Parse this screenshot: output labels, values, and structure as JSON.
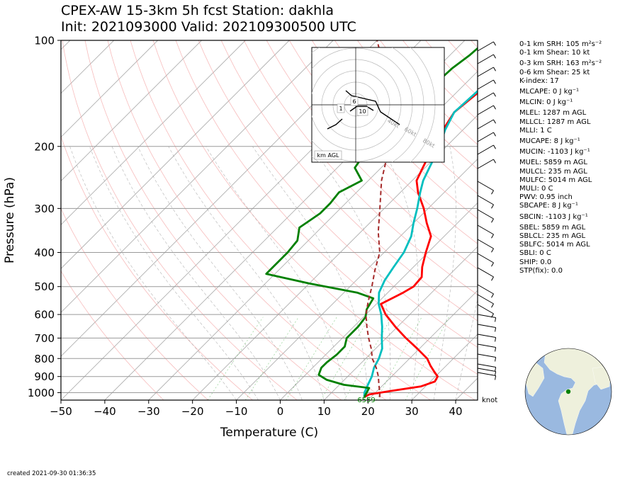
{
  "title": {
    "line1": "CPEX-AW 15-3km  5h fcst  Station: dakhla",
    "line2": "Init: 2021093000  Valid: 202109300500 UTC"
  },
  "created": "created 2021-09-30 01:36:35",
  "hodograph": {
    "label": "km AGL",
    "ring_labels": [
      "40kt",
      "60kt",
      "80kt"
    ],
    "height_markers": [
      "1",
      "6",
      "10"
    ]
  },
  "stats": [
    {
      "text": "0-1 km SRH: 105 m²s⁻²"
    },
    {
      "text": "0-1 km Shear: 10 kt"
    },
    {
      "text": "0-3 km SRH: 163 m²s⁻²",
      "gap": true
    },
    {
      "text": "0-6 km Shear: 25 kt"
    },
    {
      "text": "K-index: 17"
    },
    {
      "text": "MLCAPE: 0 J kg⁻¹",
      "gap": true
    },
    {
      "text": "MLCIN: 0 J kg⁻¹",
      "gap": true
    },
    {
      "text": "MLEL: 1287 m AGL",
      "gap": true
    },
    {
      "text": "MLLCL: 1287 m AGL"
    },
    {
      "text": "MLLI: 1 C"
    },
    {
      "text": "MUCAPE: 8 J kg⁻¹",
      "gap": true
    },
    {
      "text": "MUCIN: -1103 J kg⁻¹",
      "gap": true
    },
    {
      "text": "MUEL: 5859 m AGL",
      "gap": true
    },
    {
      "text": "MULCL: 235 m AGL"
    },
    {
      "text": "MULFC: 5014 m AGL"
    },
    {
      "text": "MULI: 0 C"
    },
    {
      "text": "PWV: 0.95 inch"
    },
    {
      "text": "SBCAPE: 8 J kg⁻¹"
    },
    {
      "text": "SBCIN: -1103 J kg⁻¹",
      "gap": true
    },
    {
      "text": "SBEL: 5859 m AGL",
      "gap": true
    },
    {
      "text": "SBLCL: 235 m AGL"
    },
    {
      "text": "SBLFC: 5014 m AGL"
    },
    {
      "text": "SBLI: 0 C"
    },
    {
      "text": "SHIP: 0.0"
    },
    {
      "text": "STP(fix): 0.0"
    }
  ],
  "wind_unit_label": "knot",
  "chart_data": {
    "type": "line",
    "subtype": "skew-T log-p",
    "xlabel": "Temperature (C)",
    "ylabel": "Pressure (hPa)",
    "xlim": [
      -50,
      45
    ],
    "ylim": [
      1050,
      100
    ],
    "y_scale": "log",
    "x_ticks": [
      -50,
      -40,
      -30,
      -20,
      -10,
      0,
      10,
      20,
      30,
      40
    ],
    "y_ticks": [
      100,
      200,
      300,
      400,
      500,
      600,
      700,
      800,
      900,
      1000
    ],
    "grid": true,
    "surface_annotation": "6559",
    "series": [
      {
        "color": "#ff0000",
        "points": [
          [
            1030,
            18.5
          ],
          [
            1012,
            19
          ],
          [
            990,
            23
          ],
          [
            960,
            29
          ],
          [
            930,
            31
          ],
          [
            900,
            30.5
          ],
          [
            870,
            28.5
          ],
          [
            840,
            26.5
          ],
          [
            800,
            24
          ],
          [
            750,
            19.5
          ],
          [
            700,
            14.5
          ],
          [
            650,
            9.5
          ],
          [
            600,
            4.5
          ],
          [
            560,
            1
          ],
          [
            520,
            3.5
          ],
          [
            500,
            4.5
          ],
          [
            470,
            4.2
          ],
          [
            440,
            2
          ],
          [
            400,
            -0.5
          ],
          [
            360,
            -3
          ],
          [
            330,
            -7
          ],
          [
            300,
            -11
          ],
          [
            270,
            -16
          ],
          [
            250,
            -19
          ],
          [
            230,
            -20.5
          ],
          [
            200,
            -23
          ],
          [
            180,
            -24.5
          ],
          [
            160,
            -26
          ],
          [
            140,
            -25
          ],
          [
            120,
            -24.5
          ],
          [
            110,
            -25
          ],
          [
            100,
            -25
          ]
        ]
      },
      {
        "color": "#00bfbf",
        "points": [
          [
            1030,
            18.5
          ],
          [
            1000,
            17.5
          ],
          [
            950,
            16.5
          ],
          [
            900,
            15.5
          ],
          [
            850,
            14
          ],
          [
            800,
            13
          ],
          [
            750,
            11.5
          ],
          [
            700,
            9
          ],
          [
            650,
            6.5
          ],
          [
            600,
            3.5
          ],
          [
            560,
            0.5
          ],
          [
            520,
            -2
          ],
          [
            480,
            -3.5
          ],
          [
            440,
            -4.5
          ],
          [
            400,
            -5.5
          ],
          [
            360,
            -7.5
          ],
          [
            330,
            -10
          ],
          [
            300,
            -12.5
          ],
          [
            270,
            -15.5
          ],
          [
            250,
            -17.5
          ],
          [
            230,
            -19
          ],
          [
            200,
            -21.5
          ],
          [
            180,
            -24
          ],
          [
            160,
            -26
          ],
          [
            140,
            -25.5
          ],
          [
            120,
            -25.2
          ],
          [
            110,
            -25.5
          ],
          [
            100,
            -25.5
          ]
        ]
      },
      {
        "color": "#008000",
        "points": [
          [
            1030,
            18.5
          ],
          [
            1000,
            18
          ],
          [
            970,
            17.5
          ],
          [
            950,
            11
          ],
          [
            920,
            6
          ],
          [
            890,
            3
          ],
          [
            870,
            2.5
          ],
          [
            850,
            2
          ],
          [
            820,
            2
          ],
          [
            780,
            2.5
          ],
          [
            740,
            2.5
          ],
          [
            700,
            1
          ],
          [
            650,
            1
          ],
          [
            610,
            0.5
          ],
          [
            580,
            -1
          ],
          [
            540,
            -2
          ],
          [
            520,
            -7
          ],
          [
            490,
            -20
          ],
          [
            460,
            -32
          ],
          [
            420,
            -32
          ],
          [
            400,
            -32
          ],
          [
            370,
            -32.5
          ],
          [
            340,
            -35
          ],
          [
            310,
            -33.5
          ],
          [
            290,
            -33.5
          ],
          [
            270,
            -34
          ],
          [
            250,
            -31.5
          ],
          [
            230,
            -36
          ],
          [
            200,
            -37.5
          ],
          [
            180,
            -38.5
          ],
          [
            160,
            -36.5
          ],
          [
            140,
            -37
          ],
          [
            120,
            -36.5
          ],
          [
            110,
            -35.5
          ],
          [
            100,
            -35
          ]
        ]
      },
      {
        "color": "#a52a2a",
        "dashed": true,
        "points": [
          [
            1030,
            22
          ],
          [
            1000,
            21
          ],
          [
            950,
            19
          ],
          [
            900,
            17
          ],
          [
            850,
            14.5
          ],
          [
            800,
            11.5
          ],
          [
            750,
            9
          ],
          [
            700,
            6
          ],
          [
            650,
            3
          ],
          [
            600,
            0
          ],
          [
            550,
            -2.5
          ],
          [
            500,
            -5
          ],
          [
            450,
            -8
          ],
          [
            400,
            -11
          ],
          [
            350,
            -16
          ],
          [
            300,
            -21
          ],
          [
            250,
            -27
          ],
          [
            200,
            -33
          ],
          [
            150,
            -43
          ],
          [
            120,
            -52
          ],
          [
            100,
            -60
          ]
        ]
      }
    ]
  }
}
